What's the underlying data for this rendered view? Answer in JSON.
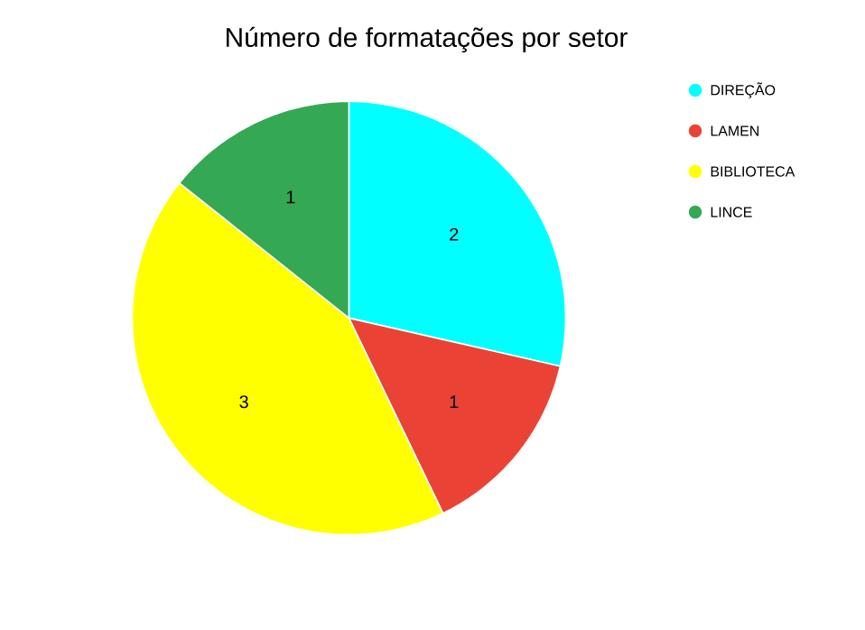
{
  "chart_data": {
    "type": "pie",
    "title": "Número de formatações por setor",
    "categories": [
      "DIREÇÃO",
      "LAMEN",
      "BIBLIOTECA",
      "LINCE"
    ],
    "values": [
      2,
      1,
      3,
      1
    ],
    "colors": [
      "#00ffff",
      "#ea4335",
      "#ffff00",
      "#34a853"
    ],
    "data_labels": true,
    "legend": "top right"
  }
}
